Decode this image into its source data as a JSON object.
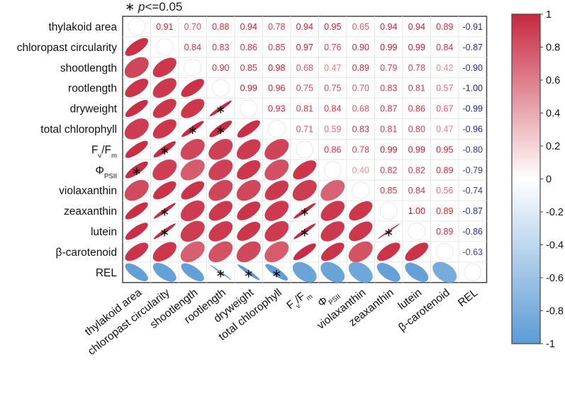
{
  "chart_data": {
    "type": "heatmap",
    "title_parts": [
      {
        "t": "∗ "
      },
      {
        "t": "p",
        "italic": true
      },
      {
        "t": "<=0.05"
      }
    ],
    "variables": [
      [
        {
          "t": "thylakoid area"
        }
      ],
      [
        {
          "t": "chloropast circularity"
        }
      ],
      [
        {
          "t": "shootlength"
        }
      ],
      [
        {
          "t": "rootlength"
        }
      ],
      [
        {
          "t": "dryweight"
        }
      ],
      [
        {
          "t": "total chlorophyll"
        }
      ],
      [
        {
          "t": "F"
        },
        {
          "t": "v",
          "sub": true
        },
        {
          "t": "/F"
        },
        {
          "t": "m",
          "sub": true
        }
      ],
      [
        {
          "t": "Φ"
        },
        {
          "t": "PSII",
          "sub": true
        }
      ],
      [
        {
          "t": "violaxanthin"
        }
      ],
      [
        {
          "t": "zeaxanthin"
        }
      ],
      [
        {
          "t": "lutein"
        }
      ],
      [
        {
          "t": "β-carotenoid"
        }
      ],
      [
        {
          "t": "REL"
        }
      ]
    ],
    "upper_values": [
      [
        "0.91",
        "0.70",
        "0.88",
        "0.94",
        "0.78",
        "0.94",
        "0.95",
        "0.65",
        "0.94",
        "0.94",
        "0.89",
        "-0.91"
      ],
      [
        "0.84",
        "0.83",
        "0.86",
        "0.85",
        "0.97",
        "0.76",
        "0.90",
        "0.99",
        "0.99",
        "0.84",
        "-0.87"
      ],
      [
        "0.90",
        "0.85",
        "0.98",
        "0.68",
        "0.47",
        "0.89",
        "0.79",
        "0.78",
        "0.42",
        "-0.90"
      ],
      [
        "0.99",
        "0.96",
        "0.75",
        "0.75",
        "0.70",
        "0.83",
        "0.81",
        "0.57",
        "-1.00"
      ],
      [
        "0.93",
        "0.81",
        "0.84",
        "0.68",
        "0.87",
        "0.86",
        "0.67",
        "-0.99"
      ],
      [
        "0.71",
        "0.59",
        "0.83",
        "0.81",
        "0.80",
        "0.47",
        "-0.96"
      ],
      [
        "0.86",
        "0.78",
        "0.99",
        "0.99",
        "0.95",
        "-0.80"
      ],
      [
        "0.40",
        "0.82",
        "0.82",
        "0.89",
        "-0.79"
      ],
      [
        "0.85",
        "0.84",
        "0.56",
        "-0.74"
      ],
      [
        "1.00",
        "0.89",
        "-0.87"
      ],
      [
        "0.89",
        "-0.86"
      ],
      [
        "-0.63"
      ]
    ],
    "significant_lower": [
      [
        4,
        3
      ],
      [
        5,
        2
      ],
      [
        5,
        3
      ],
      [
        6,
        1
      ],
      [
        7,
        0
      ],
      [
        9,
        1
      ],
      [
        9,
        6
      ],
      [
        10,
        1
      ],
      [
        10,
        6
      ],
      [
        10,
        9
      ],
      [
        12,
        3
      ],
      [
        12,
        4
      ],
      [
        12,
        5
      ]
    ],
    "significance_marker": "∗",
    "colorbar": {
      "ticks": [
        "1",
        "0.8",
        "0.6",
        "0.4",
        "0.2",
        "0",
        "-0.2",
        "-0.4",
        "-0.6",
        "-0.8",
        "-1"
      ],
      "range": [
        -1,
        1
      ]
    },
    "colors": {
      "positive": "#c8283f",
      "negative": "#5b9bd5",
      "neutral": "#ffffff",
      "negative_text": "#1a1a9c"
    }
  }
}
